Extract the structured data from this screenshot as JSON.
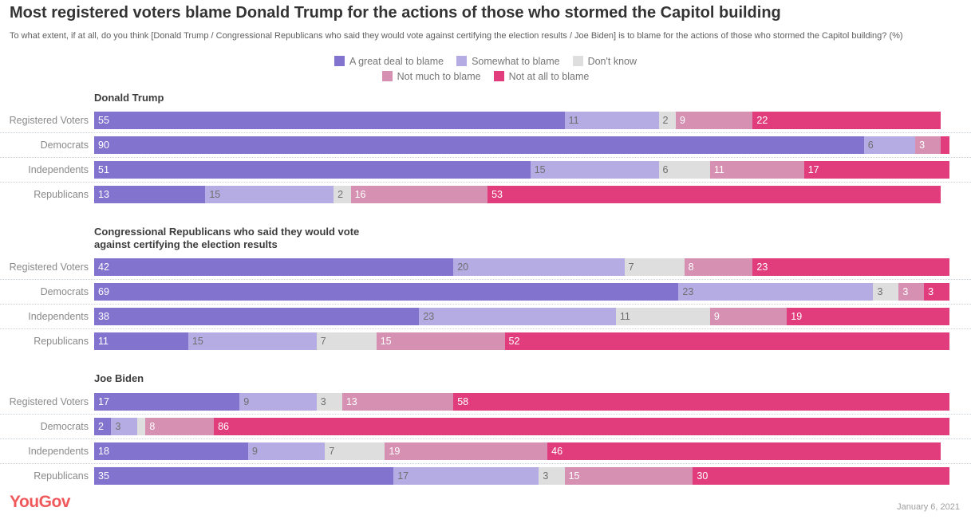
{
  "page": {
    "title": "Most registered voters blame Donald Trump for the actions of those who stormed the Capitol building",
    "subtitle": "To what extent, if at all, do you think [Donald Trump / Congressional Republicans who said they would vote against certifying the election results / Joe Biden] is to blame for the actions of those who stormed the Capitol building? (%)"
  },
  "legend": [
    {
      "label": "A great deal to blame",
      "color": "#8273CF",
      "text_color": "#ffffff"
    },
    {
      "label": "Somewhat to blame",
      "color": "#B4ACE3",
      "text_color": "#6f6f6f"
    },
    {
      "label": "Don't know",
      "color": "#DEDEDE",
      "text_color": "#6f6f6f"
    },
    {
      "label": "Not much to blame",
      "color": "#D690B2",
      "text_color": "#ffffff"
    },
    {
      "label": "Not at all to blame",
      "color": "#E13D7D",
      "text_color": "#ffffff"
    }
  ],
  "chart_data": {
    "type": "bar",
    "orientation": "horizontal-stacked",
    "xlim": [
      0,
      100
    ],
    "min_label_value": 2,
    "title": "Most registered voters blame Donald Trump for the actions of those who stormed the Capitol building",
    "categories": [
      "Registered Voters",
      "Democrats",
      "Independents",
      "Republicans"
    ],
    "series_labels": [
      "A great deal to blame",
      "Somewhat to blame",
      "Don't know",
      "Not much to blame",
      "Not at all to blame"
    ],
    "groups": [
      {
        "title": "Donald Trump",
        "rows": [
          [
            55,
            11,
            2,
            9,
            22
          ],
          [
            90,
            6,
            0,
            3,
            1
          ],
          [
            51,
            15,
            6,
            11,
            17
          ],
          [
            13,
            15,
            2,
            16,
            53
          ]
        ]
      },
      {
        "title": "Congressional Republicans who said they would vote\nagainst certifying the election results",
        "rows": [
          [
            42,
            20,
            7,
            8,
            23
          ],
          [
            69,
            23,
            3,
            3,
            3
          ],
          [
            38,
            23,
            11,
            9,
            19
          ],
          [
            11,
            15,
            7,
            15,
            52
          ]
        ]
      },
      {
        "title": "Joe Biden",
        "rows": [
          [
            17,
            9,
            3,
            13,
            58
          ],
          [
            2,
            3,
            1,
            8,
            86
          ],
          [
            18,
            9,
            7,
            19,
            46
          ],
          [
            35,
            17,
            3,
            15,
            30
          ]
        ]
      }
    ]
  },
  "footer": {
    "logo": "YouGov",
    "logo_color": "#F0595B",
    "date": "January 6, 2021"
  }
}
